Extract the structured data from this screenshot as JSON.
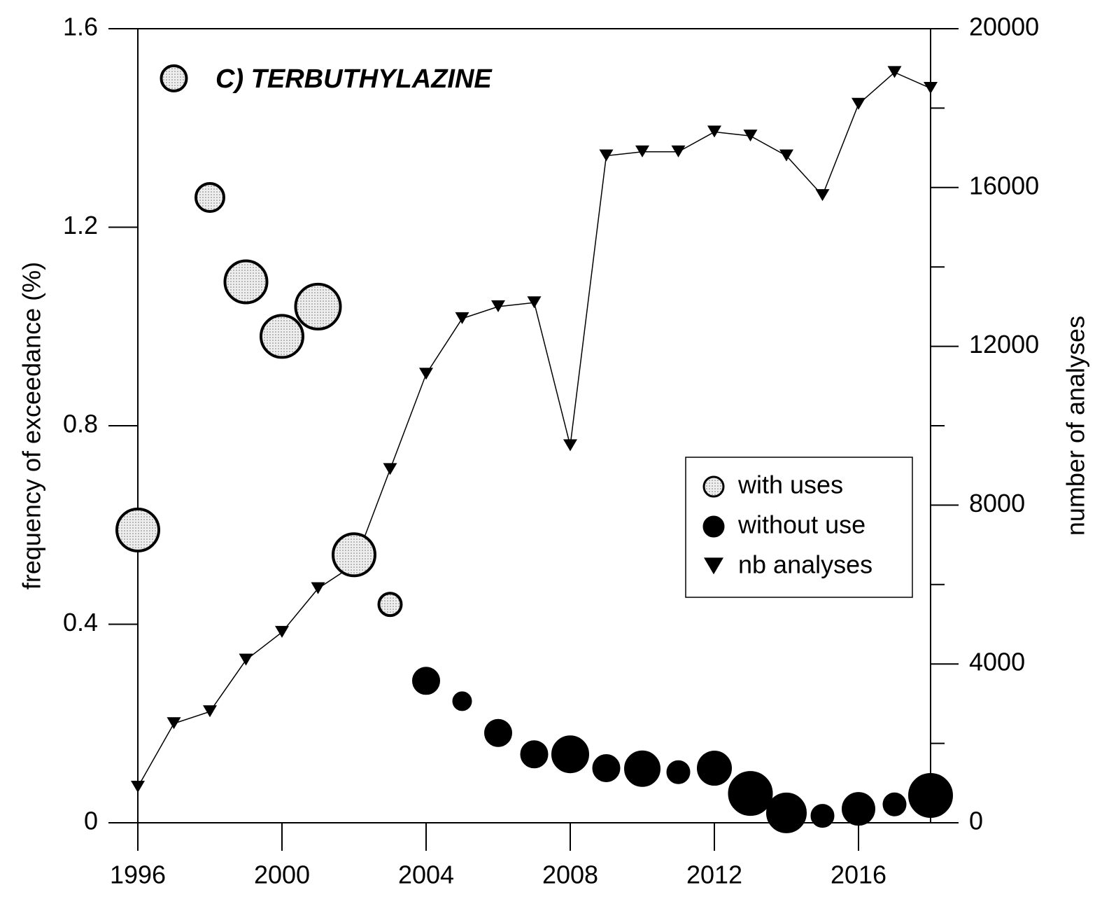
{
  "chart_data": {
    "type": "bubble-line",
    "title": "C) TERBUTHYLAZINE",
    "y_label": "frequency of exceedance (%)",
    "y2_label": "number of analyses",
    "xlim": [
      1996,
      2018
    ],
    "xticks": [
      1996,
      2000,
      2004,
      2008,
      2012,
      2016
    ],
    "ylim": [
      0,
      1.6
    ],
    "yticks": [
      0,
      0.4,
      0.8,
      1.2,
      1.6
    ],
    "y2lim": [
      0,
      20000
    ],
    "y2ticks": [
      0,
      4000,
      8000,
      12000,
      16000,
      20000
    ],
    "y2minorticks": [
      2000,
      6000,
      10000,
      14000,
      18000
    ],
    "legend": "right",
    "series": [
      {
        "name": "with uses",
        "color": "#e0e0e0",
        "marker": "bubble",
        "x": [
          1996,
          1997,
          1998,
          1999,
          2000,
          2001,
          2002,
          2003
        ],
        "values": [
          0.59,
          1.5,
          1.26,
          1.09,
          0.98,
          1.04,
          0.54,
          0.44
        ],
        "sizes": [
          30,
          18,
          20,
          30,
          30,
          32,
          30,
          16
        ]
      },
      {
        "name": "without use",
        "color": "#000000",
        "marker": "bubble",
        "x": [
          2004,
          2005,
          2006,
          2007,
          2008,
          2009,
          2010,
          2011,
          2012,
          2013,
          2014,
          2015,
          2016,
          2017,
          2018
        ],
        "values": [
          0.286,
          0.245,
          0.181,
          0.138,
          0.138,
          0.11,
          0.109,
          0.102,
          0.11,
          0.059,
          0.02,
          0.014,
          0.028,
          0.037,
          0.055
        ],
        "sizes": [
          18,
          12,
          18,
          18,
          25,
          18,
          24,
          15,
          23,
          30,
          27,
          15,
          22,
          15,
          30
        ]
      },
      {
        "name": "nb analyses",
        "color": "#000000",
        "marker": "triangle",
        "axis": "y2",
        "x": [
          1996,
          1997,
          1998,
          1999,
          2000,
          2001,
          2002,
          2003,
          2004,
          2005,
          2006,
          2007,
          2008,
          2009,
          2010,
          2011,
          2012,
          2013,
          2014,
          2015,
          2016,
          2017,
          2018
        ],
        "values": [
          900,
          2500,
          2800,
          4100,
          4800,
          5900,
          6500,
          8900,
          11300,
          12700,
          13000,
          13100,
          9500,
          16800,
          16900,
          16900,
          17400,
          17300,
          16800,
          15800,
          18100,
          18900,
          18500
        ]
      }
    ]
  }
}
